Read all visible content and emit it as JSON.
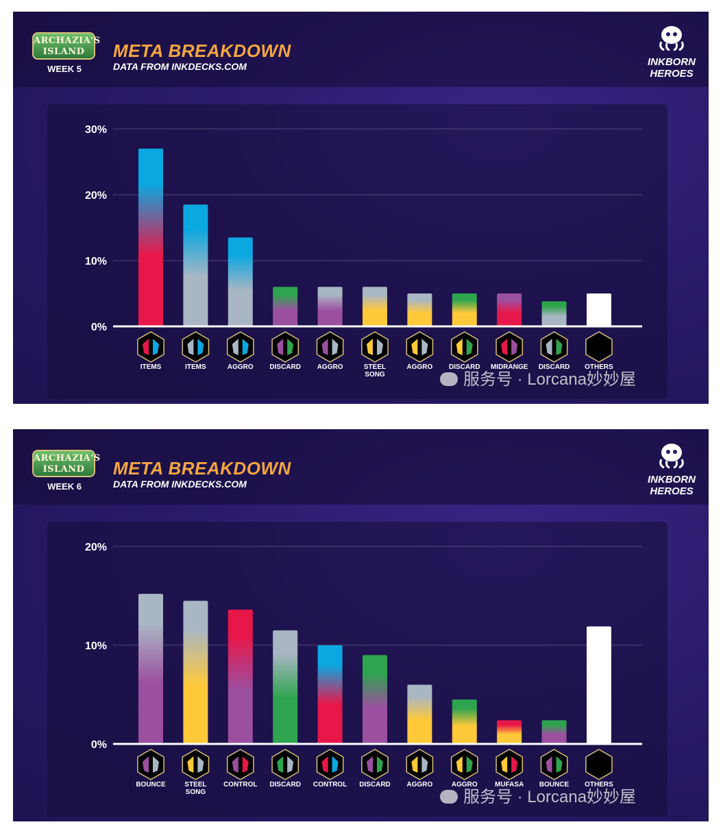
{
  "colors": {
    "amber": "#ffc93a",
    "amethyst": "#9b4fa0",
    "emerald": "#2ea44f",
    "ruby": "#e8174a",
    "sapphire": "#0ba7e0",
    "steel": "#a9b6c3",
    "others": "#ffffff",
    "title": "#f4a640"
  },
  "panels": [
    {
      "logo_line1": "ARCHAZIA'S",
      "logo_line2": "ISLAND",
      "week": "WEEK 5",
      "title": "META BREAKDOWN",
      "subtitle": "DATA FROM INKDECKS.COM",
      "brand_line1": "INKBORN",
      "brand_line2": "HEROES",
      "watermark": "服务号 · Lorcana妙妙屋"
    },
    {
      "logo_line1": "ARCHAZIA'S",
      "logo_line2": "ISLAND",
      "week": "WEEK 6",
      "title": "META BREAKDOWN",
      "subtitle": "DATA FROM INKDECKS.COM",
      "brand_line1": "INKBORN",
      "brand_line2": "HEROES",
      "watermark": "服务号 · Lorcana妙妙屋"
    }
  ],
  "chart_data": [
    {
      "type": "bar",
      "categories": [
        "ITEMS",
        "ITEMS",
        "AGGRO",
        "DISCARD",
        "AGGRO",
        "STEEL SONG",
        "AGGRO",
        "DISCARD",
        "MIDRANGE",
        "DISCARD",
        "OTHERS"
      ],
      "values": [
        27,
        18.5,
        13.5,
        6,
        6,
        6,
        5,
        5,
        5,
        3.8,
        5
      ],
      "units": "%",
      "ylim": [
        0,
        30
      ],
      "yticks": [
        "0%",
        "10%",
        "20%",
        "30%"
      ],
      "yticks_values": [
        0,
        10,
        20,
        30
      ],
      "grid": true,
      "ink_colors": [
        [
          "ruby",
          "sapphire"
        ],
        [
          "steel",
          "sapphire"
        ],
        [
          "steel",
          "sapphire"
        ],
        [
          "amethyst",
          "emerald"
        ],
        [
          "amethyst",
          "steel"
        ],
        [
          "amber",
          "steel"
        ],
        [
          "amber",
          "steel"
        ],
        [
          "amber",
          "emerald"
        ],
        [
          "ruby",
          "amethyst"
        ],
        [
          "steel",
          "emerald"
        ],
        [
          "others",
          "others"
        ]
      ]
    },
    {
      "type": "bar",
      "categories": [
        "BOUNCE",
        "STEEL SONG",
        "CONTROL",
        "DISCARD",
        "CONTROL",
        "DISCARD",
        "AGGRO",
        "AGGRO",
        "MUFASA",
        "BOUNCE",
        "OTHERS"
      ],
      "values": [
        15.2,
        14.5,
        13.6,
        11.5,
        10,
        9,
        6,
        4.5,
        2.4,
        2.4,
        11.9
      ],
      "units": "%",
      "ylim": [
        0,
        20
      ],
      "yticks": [
        "0%",
        "10%",
        "20%"
      ],
      "yticks_values": [
        0,
        10,
        20
      ],
      "grid": true,
      "ink_colors": [
        [
          "amethyst",
          "steel"
        ],
        [
          "amber",
          "steel"
        ],
        [
          "amethyst",
          "ruby"
        ],
        [
          "emerald",
          "steel"
        ],
        [
          "ruby",
          "sapphire"
        ],
        [
          "amethyst",
          "emerald"
        ],
        [
          "amber",
          "steel"
        ],
        [
          "amber",
          "emerald"
        ],
        [
          "amber",
          "ruby"
        ],
        [
          "amethyst",
          "emerald"
        ],
        [
          "others",
          "others"
        ]
      ]
    }
  ]
}
